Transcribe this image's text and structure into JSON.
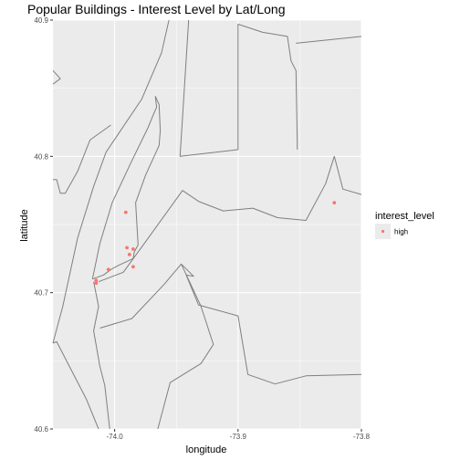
{
  "colors": {
    "panel_bg": "#ebebeb",
    "grid_major": "#ffffff",
    "boundary": "#7f7f7f",
    "point": "#f8766d",
    "tick_text": "#4d4d4d"
  },
  "chart_data": {
    "type": "scatter",
    "title": "Popular Buildings - Interest Level by Lat/Long",
    "xlabel": "longitude",
    "ylabel": "latitude",
    "xlim": [
      -74.05,
      -73.8
    ],
    "ylim": [
      40.6,
      40.9
    ],
    "x_ticks": [
      -74.0,
      -73.9,
      -73.8
    ],
    "x_tick_labels": [
      "-74.0",
      "-73.9",
      "-73.8"
    ],
    "y_ticks": [
      40.6,
      40.7,
      40.8,
      40.9
    ],
    "y_tick_labels": [
      "40.6",
      "40.7",
      "40.8",
      "40.9"
    ],
    "grid": true,
    "legend": {
      "title": "interest_level",
      "placement": "right",
      "entries": [
        "high"
      ]
    },
    "series": [
      {
        "name": "high",
        "color": "#f8766d",
        "points": [
          [
            -73.991,
            40.759
          ],
          [
            -73.99,
            40.733
          ],
          [
            -73.985,
            40.732
          ],
          [
            -73.988,
            40.728
          ],
          [
            -73.985,
            40.719
          ],
          [
            -74.005,
            40.717
          ],
          [
            -74.015,
            40.709
          ],
          [
            -74.015,
            40.707
          ],
          [
            -73.822,
            40.766
          ]
        ]
      }
    ],
    "boundaries": [
      [
        [
          -74.05,
          40.853
        ],
        [
          -74.044,
          40.857
        ],
        [
          -74.05,
          40.863
        ]
      ],
      [
        [
          -74.05,
          40.783
        ],
        [
          -74.047,
          40.783
        ],
        [
          -74.044,
          40.773
        ],
        [
          -74.04,
          40.773
        ],
        [
          -74.03,
          40.789
        ],
        [
          -74.02,
          40.812
        ],
        [
          -74.003,
          40.823
        ]
      ],
      [
        [
          -74.05,
          40.663
        ],
        [
          -74.047,
          40.664
        ],
        [
          -74.023,
          40.622
        ],
        [
          -74.013,
          40.6
        ]
      ],
      [
        [
          -74.05,
          40.663
        ],
        [
          -74.042,
          40.69
        ],
        [
          -74.03,
          40.74
        ],
        [
          -74.017,
          40.778
        ],
        [
          -74.007,
          40.803
        ],
        [
          -73.978,
          40.842
        ],
        [
          -73.962,
          40.876
        ],
        [
          -73.956,
          40.9
        ]
      ],
      [
        [
          -74.018,
          40.71
        ],
        [
          -74.012,
          40.736
        ],
        [
          -74.002,
          40.766
        ],
        [
          -73.987,
          40.795
        ],
        [
          -73.973,
          40.821
        ],
        [
          -73.968,
          40.832
        ],
        [
          -73.966,
          40.836
        ],
        [
          -73.967,
          40.844
        ],
        [
          -73.964,
          40.838
        ],
        [
          -73.963,
          40.819
        ],
        [
          -73.964,
          40.808
        ],
        [
          -73.975,
          40.786
        ],
        [
          -73.983,
          40.766
        ],
        [
          -73.981,
          40.735
        ],
        [
          -73.984,
          40.73
        ],
        [
          -73.985,
          40.725
        ],
        [
          -73.997,
          40.72
        ],
        [
          -74.003,
          40.717
        ],
        [
          -74.009,
          40.713
        ],
        [
          -74.018,
          40.71
        ]
      ],
      [
        [
          -73.94,
          40.9
        ],
        [
          -73.947,
          40.8
        ],
        [
          -73.9,
          40.805
        ],
        [
          -73.9,
          40.897
        ],
        [
          -73.88,
          40.891
        ],
        [
          -73.86,
          40.888
        ],
        [
          -73.857,
          40.87
        ],
        [
          -73.853,
          40.863
        ],
        [
          -73.852,
          40.81
        ],
        [
          -73.852,
          40.805
        ]
      ],
      [
        [
          -73.853,
          40.883
        ],
        [
          -73.8,
          40.888
        ]
      ],
      [
        [
          -74.013,
          40.708
        ],
        [
          -73.993,
          40.715
        ],
        [
          -73.976,
          40.736
        ],
        [
          -73.945,
          40.775
        ],
        [
          -73.932,
          40.767
        ],
        [
          -73.912,
          40.76
        ],
        [
          -73.888,
          40.762
        ],
        [
          -73.868,
          40.755
        ],
        [
          -73.845,
          40.753
        ],
        [
          -73.829,
          40.78
        ],
        [
          -73.822,
          40.8
        ],
        [
          -73.815,
          40.776
        ],
        [
          -73.8,
          40.772
        ]
      ],
      [
        [
          -73.946,
          40.721
        ],
        [
          -73.936,
          40.712
        ],
        [
          -73.942,
          40.713
        ],
        [
          -73.932,
          40.691
        ],
        [
          -73.9,
          40.683
        ],
        [
          -73.892,
          40.64
        ],
        [
          -73.87,
          40.633
        ],
        [
          -73.845,
          40.639
        ],
        [
          -73.8,
          40.64
        ]
      ],
      [
        [
          -74.017,
          40.708
        ],
        [
          -74.013,
          40.69
        ],
        [
          -74.017,
          40.672
        ],
        [
          -74.012,
          40.646
        ],
        [
          -74.008,
          40.632
        ],
        [
          -74.004,
          40.6
        ]
      ],
      [
        [
          -74.012,
          40.674
        ],
        [
          -73.986,
          40.681
        ],
        [
          -73.96,
          40.706
        ],
        [
          -73.946,
          40.721
        ],
        [
          -73.93,
          40.69
        ],
        [
          -73.92,
          40.662
        ],
        [
          -73.93,
          40.648
        ],
        [
          -73.955,
          40.634
        ],
        [
          -73.965,
          40.6
        ]
      ]
    ]
  }
}
